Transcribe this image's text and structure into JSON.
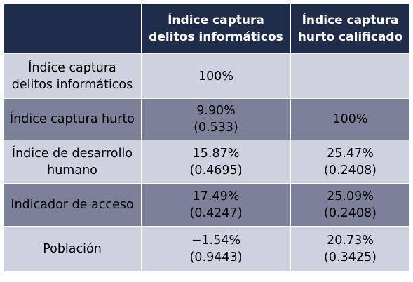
{
  "table": {
    "headers": [
      "",
      "Índice captura delitos informáticos",
      "Índice captura hurto calificado"
    ],
    "rows": [
      {
        "label": "Índice captura delitos informáticos",
        "c1": {
          "value": "100%",
          "sub": ""
        },
        "c2": {
          "value": "",
          "sub": ""
        }
      },
      {
        "label": "Índice captura hurto",
        "c1": {
          "value": "9.90%",
          "sub": "(0.533)"
        },
        "c2": {
          "value": "100%",
          "sub": ""
        }
      },
      {
        "label": "Índice de desarrollo humano",
        "c1": {
          "value": "15.87%",
          "sub": "(0.4695)"
        },
        "c2": {
          "value": "25.47%",
          "sub": "(0.2408)"
        }
      },
      {
        "label": "Indicador de acceso",
        "c1": {
          "value": "17.49%",
          "sub": "(0.4247)"
        },
        "c2": {
          "value": "25.09%",
          "sub": "(0.2408)"
        }
      },
      {
        "label": "Población",
        "c1": {
          "value": "−1.54%",
          "sub": "(0.9443)"
        },
        "c2": {
          "value": "20.73%",
          "sub": "(0.3425)"
        }
      }
    ]
  },
  "colors": {
    "header_bg": "#1f2d4a",
    "row_light": "#ced1de",
    "row_dark": "#7c8099"
  }
}
